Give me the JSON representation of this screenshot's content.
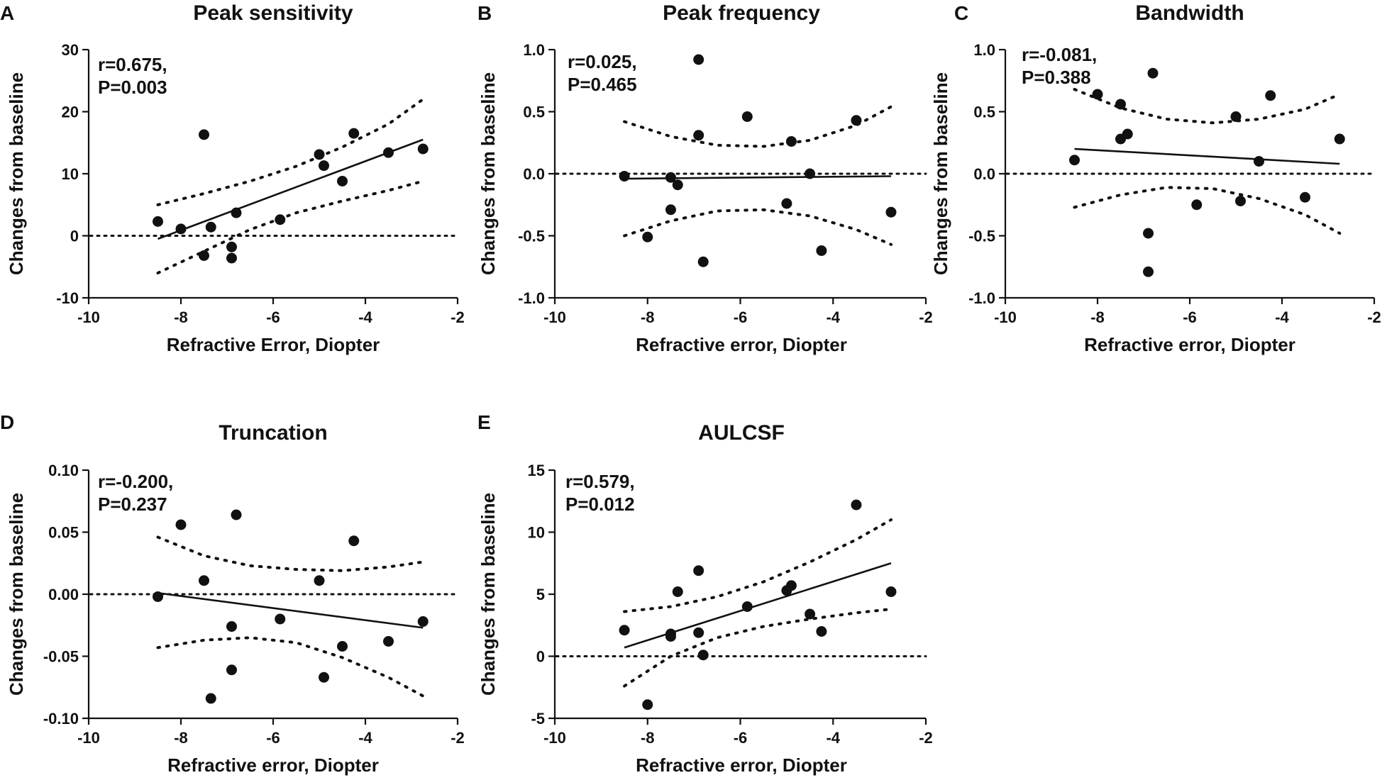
{
  "chart_data": [
    {
      "letter": "A",
      "type": "scatter",
      "title": "Peak sensitivity",
      "xlabel": "Refractive Error, Diopter",
      "ylabel": "Changes from baseline",
      "xlim": [
        -10,
        -2
      ],
      "ylim": [
        -10,
        30
      ],
      "x_ticks": [
        -10,
        -8,
        -6,
        -4,
        -2
      ],
      "y_ticks": [
        -10,
        0,
        10,
        20,
        30
      ],
      "x_tick_labels": [
        "-10",
        "-8",
        "-6",
        "-4",
        "-2"
      ],
      "y_tick_labels": [
        "-10",
        "0",
        "10",
        "20",
        "30"
      ],
      "stat_r": "r=0.675,",
      "stat_p": "P=0.003",
      "points": [
        {
          "x": -8.5,
          "y": 2.3
        },
        {
          "x": -8.0,
          "y": 1.1
        },
        {
          "x": -7.5,
          "y": 16.3
        },
        {
          "x": -7.5,
          "y": -3.2
        },
        {
          "x": -7.35,
          "y": 1.4
        },
        {
          "x": -6.9,
          "y": -1.8
        },
        {
          "x": -6.9,
          "y": -3.6
        },
        {
          "x": -6.8,
          "y": 3.7
        },
        {
          "x": -5.85,
          "y": 2.6
        },
        {
          "x": -5.0,
          "y": 13.1
        },
        {
          "x": -4.9,
          "y": 11.3
        },
        {
          "x": -4.5,
          "y": 8.8
        },
        {
          "x": -4.25,
          "y": 16.5
        },
        {
          "x": -3.5,
          "y": 13.4
        },
        {
          "x": -2.75,
          "y": 14.0
        }
      ],
      "fit": [
        [
          -8.5,
          -0.5
        ],
        [
          -2.75,
          15.5
        ]
      ],
      "ci_upper": [
        [
          -8.5,
          5.0
        ],
        [
          -7.5,
          6.8
        ],
        [
          -6.5,
          8.8
        ],
        [
          -5.5,
          11.2
        ],
        [
          -4.5,
          14.3
        ],
        [
          -3.5,
          18.0
        ],
        [
          -2.75,
          22.0
        ]
      ],
      "ci_lower": [
        [
          -8.5,
          -6.0
        ],
        [
          -7.5,
          -2.5
        ],
        [
          -6.5,
          1.0
        ],
        [
          -5.5,
          3.7
        ],
        [
          -4.5,
          5.6
        ],
        [
          -3.5,
          7.3
        ],
        [
          -2.75,
          8.8
        ]
      ]
    },
    {
      "letter": "B",
      "type": "scatter",
      "title": "Peak frequency",
      "xlabel": "Refractive error, Diopter",
      "ylabel": "Changes from baseline",
      "xlim": [
        -10,
        -2
      ],
      "ylim": [
        -1.0,
        1.0
      ],
      "x_ticks": [
        -10,
        -8,
        -6,
        -4,
        -2
      ],
      "y_ticks": [
        -1.0,
        -0.5,
        0.0,
        0.5,
        1.0
      ],
      "x_tick_labels": [
        "-10",
        "-8",
        "-6",
        "-4",
        "-2"
      ],
      "y_tick_labels": [
        "-1.0",
        "-0.5",
        "0.0",
        "0.5",
        "1.0"
      ],
      "stat_r": "r=0.025,",
      "stat_p": "P=0.465",
      "points": [
        {
          "x": -8.5,
          "y": -0.02
        },
        {
          "x": -8.0,
          "y": -0.51
        },
        {
          "x": -7.5,
          "y": -0.03
        },
        {
          "x": -7.5,
          "y": -0.29
        },
        {
          "x": -7.35,
          "y": -0.09
        },
        {
          "x": -6.9,
          "y": 0.92
        },
        {
          "x": -6.9,
          "y": 0.31
        },
        {
          "x": -6.8,
          "y": -0.71
        },
        {
          "x": -5.85,
          "y": 0.46
        },
        {
          "x": -5.0,
          "y": -0.24
        },
        {
          "x": -4.9,
          "y": 0.26
        },
        {
          "x": -4.5,
          "y": 0.0
        },
        {
          "x": -4.25,
          "y": -0.62
        },
        {
          "x": -3.5,
          "y": 0.43
        },
        {
          "x": -2.75,
          "y": -0.31
        }
      ],
      "fit": [
        [
          -8.5,
          -0.04
        ],
        [
          -2.75,
          -0.02
        ]
      ],
      "ci_upper": [
        [
          -8.5,
          0.42
        ],
        [
          -7.5,
          0.3
        ],
        [
          -6.5,
          0.23
        ],
        [
          -5.5,
          0.22
        ],
        [
          -4.5,
          0.27
        ],
        [
          -3.5,
          0.39
        ],
        [
          -2.75,
          0.54
        ]
      ],
      "ci_lower": [
        [
          -8.5,
          -0.5
        ],
        [
          -7.5,
          -0.38
        ],
        [
          -6.5,
          -0.3
        ],
        [
          -5.5,
          -0.29
        ],
        [
          -4.5,
          -0.34
        ],
        [
          -3.5,
          -0.45
        ],
        [
          -2.75,
          -0.57
        ]
      ]
    },
    {
      "letter": "C",
      "type": "scatter",
      "title": "Bandwidth",
      "xlabel": "Refractive error, Diopter",
      "ylabel": "Changes from baseline",
      "xlim": [
        -10,
        -2
      ],
      "ylim": [
        -1.0,
        1.0
      ],
      "x_ticks": [
        -10,
        -8,
        -6,
        -4,
        -2
      ],
      "y_ticks": [
        -1.0,
        -0.5,
        0.0,
        0.5,
        1.0
      ],
      "x_tick_labels": [
        "-10",
        "-8",
        "-6",
        "-4",
        "-2"
      ],
      "y_tick_labels": [
        "-1.0",
        "-0.5",
        "0.0",
        "0.5",
        "1.0"
      ],
      "stat_r": "r=-0.081,",
      "stat_p": "P=0.388",
      "points": [
        {
          "x": -8.5,
          "y": 0.11
        },
        {
          "x": -8.0,
          "y": 0.64
        },
        {
          "x": -7.5,
          "y": 0.56
        },
        {
          "x": -7.5,
          "y": 0.28
        },
        {
          "x": -7.35,
          "y": 0.32
        },
        {
          "x": -6.9,
          "y": -0.48
        },
        {
          "x": -6.9,
          "y": -0.79
        },
        {
          "x": -6.8,
          "y": 0.81
        },
        {
          "x": -5.85,
          "y": -0.25
        },
        {
          "x": -5.0,
          "y": 0.46
        },
        {
          "x": -4.9,
          "y": -0.22
        },
        {
          "x": -4.5,
          "y": 0.1
        },
        {
          "x": -4.25,
          "y": 0.63
        },
        {
          "x": -3.5,
          "y": -0.19
        },
        {
          "x": -2.75,
          "y": 0.28
        }
      ],
      "fit": [
        [
          -8.5,
          0.2
        ],
        [
          -2.75,
          0.08
        ]
      ],
      "ci_upper": [
        [
          -8.5,
          0.68
        ],
        [
          -7.5,
          0.53
        ],
        [
          -6.5,
          0.44
        ],
        [
          -5.5,
          0.41
        ],
        [
          -4.5,
          0.44
        ],
        [
          -3.5,
          0.52
        ],
        [
          -2.75,
          0.64
        ]
      ],
      "ci_lower": [
        [
          -8.5,
          -0.27
        ],
        [
          -7.5,
          -0.17
        ],
        [
          -6.5,
          -0.11
        ],
        [
          -5.5,
          -0.12
        ],
        [
          -4.5,
          -0.2
        ],
        [
          -3.5,
          -0.33
        ],
        [
          -2.75,
          -0.48
        ]
      ]
    },
    {
      "letter": "D",
      "type": "scatter",
      "title": "Truncation",
      "xlabel": "Refractive error, Diopter",
      "ylabel": "Changes from baseline",
      "xlim": [
        -10,
        -2
      ],
      "ylim": [
        -0.1,
        0.1
      ],
      "x_ticks": [
        -10,
        -8,
        -6,
        -4,
        -2
      ],
      "y_ticks": [
        -0.1,
        -0.05,
        0.0,
        0.05,
        0.1
      ],
      "x_tick_labels": [
        "-10",
        "-8",
        "-6",
        "-4",
        "-2"
      ],
      "y_tick_labels": [
        "-0.10",
        "-0.05",
        "0.00",
        "0.05",
        "0.10"
      ],
      "stat_r": "r=-0.200,",
      "stat_p": "P=0.237",
      "points": [
        {
          "x": -8.5,
          "y": -0.002
        },
        {
          "x": -8.0,
          "y": 0.056
        },
        {
          "x": -7.5,
          "y": 0.011
        },
        {
          "x": -7.35,
          "y": -0.084
        },
        {
          "x": -6.9,
          "y": -0.026
        },
        {
          "x": -6.9,
          "y": -0.061
        },
        {
          "x": -6.8,
          "y": 0.064
        },
        {
          "x": -5.85,
          "y": -0.02
        },
        {
          "x": -5.0,
          "y": 0.011
        },
        {
          "x": -4.9,
          "y": -0.067
        },
        {
          "x": -4.5,
          "y": -0.042
        },
        {
          "x": -4.25,
          "y": 0.043
        },
        {
          "x": -3.5,
          "y": -0.038
        },
        {
          "x": -2.75,
          "y": -0.022
        }
      ],
      "fit": [
        [
          -8.5,
          0.001
        ],
        [
          -2.75,
          -0.027
        ]
      ],
      "ci_upper": [
        [
          -8.5,
          0.046
        ],
        [
          -7.5,
          0.031
        ],
        [
          -6.5,
          0.023
        ],
        [
          -5.5,
          0.02
        ],
        [
          -4.5,
          0.019
        ],
        [
          -3.5,
          0.022
        ],
        [
          -2.75,
          0.026
        ]
      ],
      "ci_lower": [
        [
          -8.5,
          -0.043
        ],
        [
          -7.5,
          -0.037
        ],
        [
          -6.5,
          -0.035
        ],
        [
          -5.5,
          -0.039
        ],
        [
          -4.5,
          -0.051
        ],
        [
          -3.5,
          -0.067
        ],
        [
          -2.75,
          -0.082
        ]
      ]
    },
    {
      "letter": "E",
      "type": "scatter",
      "title": "AULCSF",
      "xlabel": "Refractive error, Diopter",
      "ylabel": "Changes from baseline",
      "xlim": [
        -10,
        -2
      ],
      "ylim": [
        -5,
        15
      ],
      "x_ticks": [
        -10,
        -8,
        -6,
        -4,
        -2
      ],
      "y_ticks": [
        -5,
        0,
        5,
        10,
        15
      ],
      "x_tick_labels": [
        "-10",
        "-8",
        "-6",
        "-4",
        "-2"
      ],
      "y_tick_labels": [
        "-5",
        "0",
        "5",
        "10",
        "15"
      ],
      "stat_r": "r=0.579,",
      "stat_p": "P=0.012",
      "points": [
        {
          "x": -8.5,
          "y": 2.1
        },
        {
          "x": -8.0,
          "y": -3.9
        },
        {
          "x": -7.5,
          "y": 1.8
        },
        {
          "x": -7.5,
          "y": 1.6
        },
        {
          "x": -7.35,
          "y": 5.2
        },
        {
          "x": -6.9,
          "y": 6.9
        },
        {
          "x": -6.9,
          "y": 1.9
        },
        {
          "x": -6.8,
          "y": 0.1
        },
        {
          "x": -5.85,
          "y": 4.0
        },
        {
          "x": -5.0,
          "y": 5.3
        },
        {
          "x": -4.9,
          "y": 5.7
        },
        {
          "x": -4.5,
          "y": 3.4
        },
        {
          "x": -4.25,
          "y": 2.0
        },
        {
          "x": -3.5,
          "y": 12.2
        },
        {
          "x": -2.75,
          "y": 5.2
        }
      ],
      "fit": [
        [
          -8.5,
          0.7
        ],
        [
          -2.75,
          7.5
        ]
      ],
      "ci_upper": [
        [
          -8.5,
          3.6
        ],
        [
          -7.5,
          4.0
        ],
        [
          -6.5,
          4.8
        ],
        [
          -5.5,
          6.0
        ],
        [
          -4.5,
          7.6
        ],
        [
          -3.5,
          9.4
        ],
        [
          -2.75,
          11.0
        ]
      ],
      "ci_lower": [
        [
          -8.5,
          -2.4
        ],
        [
          -7.5,
          0.0
        ],
        [
          -6.5,
          1.5
        ],
        [
          -5.5,
          2.4
        ],
        [
          -4.5,
          3.0
        ],
        [
          -3.5,
          3.5
        ],
        [
          -2.75,
          3.8
        ]
      ]
    }
  ]
}
